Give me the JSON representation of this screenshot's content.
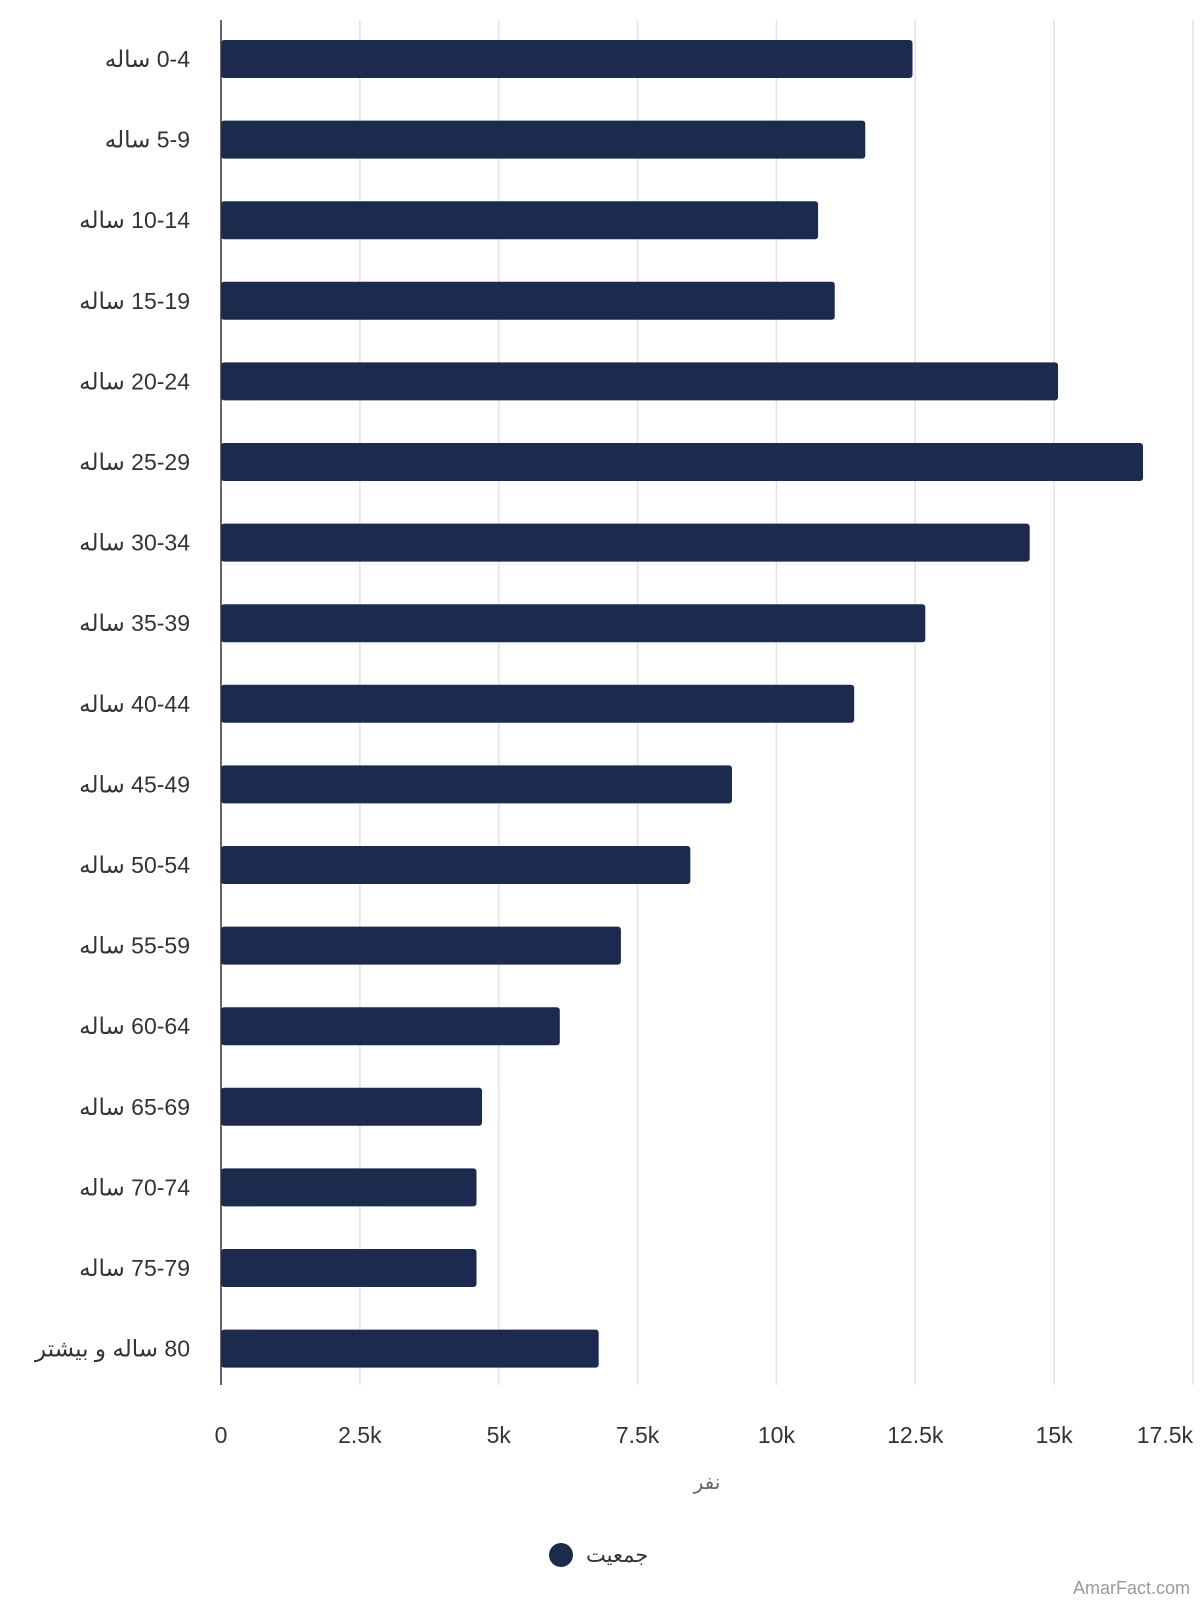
{
  "chart_data": {
    "type": "bar",
    "orientation": "horizontal",
    "categories": [
      "0-4 ساله",
      "5-9 ساله",
      "10-14 ساله",
      "15-19 ساله",
      "20-24 ساله",
      "25-29 ساله",
      "30-34 ساله",
      "35-39 ساله",
      "40-44 ساله",
      "45-49 ساله",
      "50-54 ساله",
      "55-59 ساله",
      "60-64 ساله",
      "65-69 ساله",
      "70-74 ساله",
      "75-79 ساله",
      "80 ساله و بیشتر"
    ],
    "series": [
      {
        "name": "جمعیت",
        "color": "#1c2a4d",
        "values": [
          12450,
          11600,
          10750,
          11050,
          15070,
          16600,
          14560,
          12680,
          11400,
          9200,
          8450,
          7200,
          6100,
          4700,
          4600,
          4600,
          6800
        ]
      }
    ],
    "xlabel": "نفر",
    "ylabel": "",
    "xlim": [
      0,
      17500
    ],
    "xticks": [
      0,
      2500,
      5000,
      7500,
      10000,
      12500,
      15000,
      17500
    ],
    "xtick_labels": [
      "0",
      "2.5k",
      "5k",
      "7.5k",
      "10k",
      "12.5k",
      "15k",
      "17.5k"
    ],
    "grid": "vertical",
    "legend_position": "bottom-center"
  },
  "watermark": "AmarFact.com"
}
